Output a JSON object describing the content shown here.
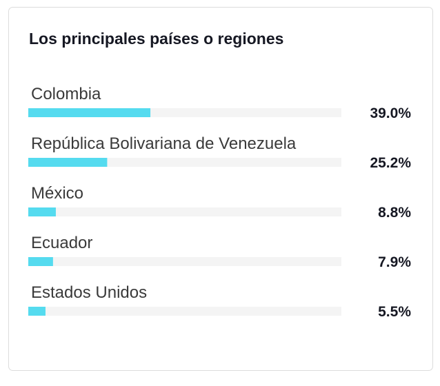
{
  "chart_data": {
    "type": "bar",
    "orientation": "horizontal",
    "title": "Los principales países o regiones",
    "categories": [
      "Colombia",
      "República Bolivariana de Venezuela",
      "México",
      "Ecuador",
      "Estados Unidos"
    ],
    "values": [
      39.0,
      25.2,
      8.8,
      7.9,
      5.5
    ],
    "value_labels": [
      "39.0%",
      "25.2%",
      "8.8%",
      "7.9%",
      "5.5%"
    ],
    "color": "#55dbef",
    "track_color": "#f4f4f4",
    "xlim": [
      0,
      100
    ]
  }
}
